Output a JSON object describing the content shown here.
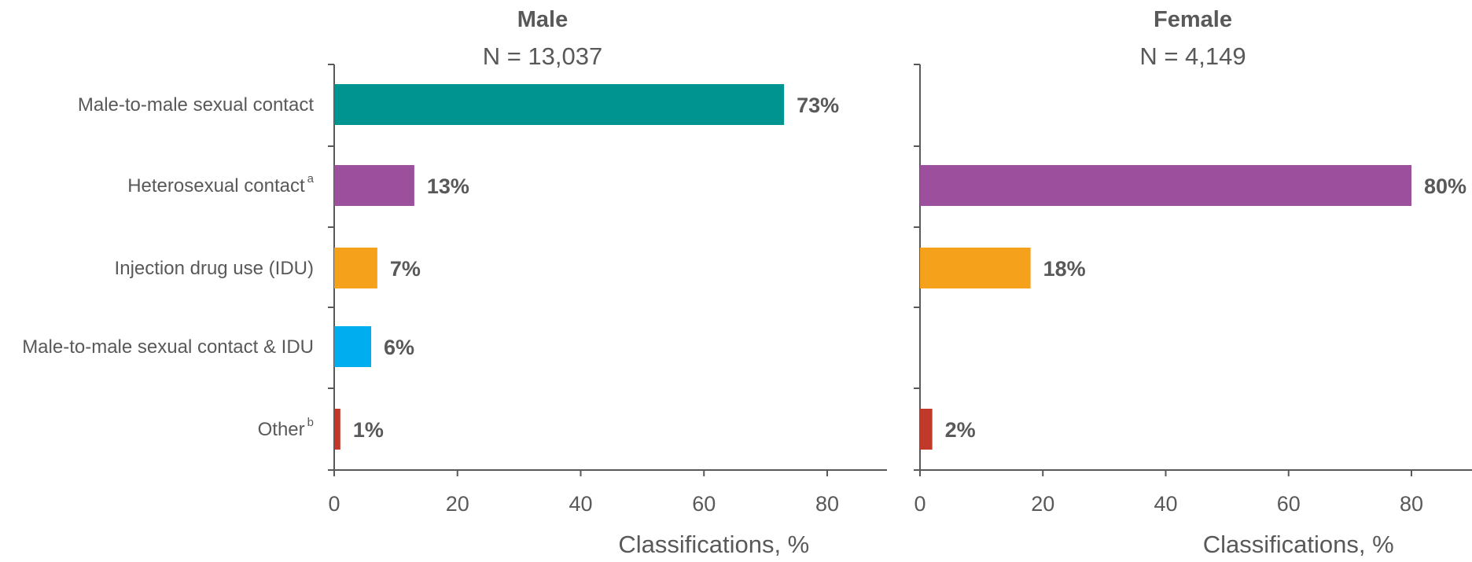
{
  "chart_data": [
    {
      "type": "bar",
      "orientation": "horizontal",
      "title": "Male",
      "subtitle": "N = 13,037",
      "xlabel": "Classifications, %",
      "xlim": [
        0,
        90
      ],
      "xticks": [
        0,
        20,
        40,
        60,
        80
      ],
      "categories": [
        {
          "label": "Male-to-male sexual contact",
          "sup": ""
        },
        {
          "label": "Heterosexual contact",
          "sup": "a"
        },
        {
          "label": "Injection drug use (IDU)",
          "sup": ""
        },
        {
          "label": "Male-to-male sexual contact & IDU",
          "sup": ""
        },
        {
          "label": "Other",
          "sup": "b"
        }
      ],
      "values": [
        73,
        13,
        7,
        6,
        1
      ],
      "data_labels": [
        "73%",
        "13%",
        "7%",
        "6%",
        "1%"
      ],
      "colors": [
        "#009490",
        "#9B4F9D",
        "#F5A11C",
        "#00AEEF",
        "#C0392B"
      ],
      "grid": false
    },
    {
      "type": "bar",
      "orientation": "horizontal",
      "title": "Female",
      "subtitle": "N = 4,149",
      "xlabel": "Classifications, %",
      "xlim": [
        0,
        90
      ],
      "xticks": [
        0,
        20,
        40,
        60,
        80
      ],
      "values": [
        null,
        80,
        18,
        null,
        2
      ],
      "data_labels": [
        "",
        "80%",
        "18%",
        "",
        "2%"
      ],
      "colors": [
        "#009490",
        "#9B4F9D",
        "#F5A11C",
        "#00AEEF",
        "#C0392B"
      ],
      "grid": false
    }
  ]
}
